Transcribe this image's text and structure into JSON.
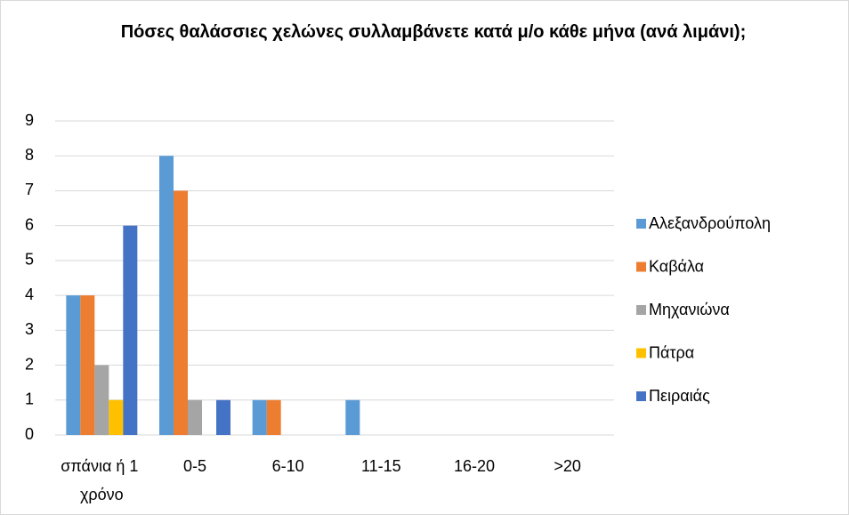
{
  "chart_data": {
    "type": "bar",
    "title": "Πόσες θαλάσσιες χελώνες συλλαμβάνετε κατά μ/ο κάθε μήνα (ανά λιμάνι);",
    "categories": [
      "σπάνια ή 1 χρόνο",
      "0-5",
      "6-10",
      "11-15",
      "16-20",
      ">20"
    ],
    "series": [
      {
        "name": "Αλεξανδρούπολη",
        "color": "#5b9bd5",
        "values": [
          4,
          8,
          1,
          1,
          0,
          0
        ]
      },
      {
        "name": "Καβάλα",
        "color": "#ed7d31",
        "values": [
          4,
          7,
          1,
          0,
          0,
          0
        ]
      },
      {
        "name": "Μηχανιώνα",
        "color": "#a5a5a5",
        "values": [
          2,
          1,
          0,
          0,
          0,
          0
        ]
      },
      {
        "name": "Πάτρα",
        "color": "#ffc000",
        "values": [
          1,
          0,
          0,
          0,
          0,
          0
        ]
      },
      {
        "name": "Πειραιάς",
        "color": "#4472c4",
        "values": [
          6,
          1,
          0,
          0,
          0,
          0
        ]
      }
    ],
    "ylim": [
      0,
      9
    ],
    "yticks": [
      0,
      1,
      2,
      3,
      4,
      5,
      6,
      7,
      8,
      9
    ],
    "grid": true,
    "legend": "right"
  }
}
